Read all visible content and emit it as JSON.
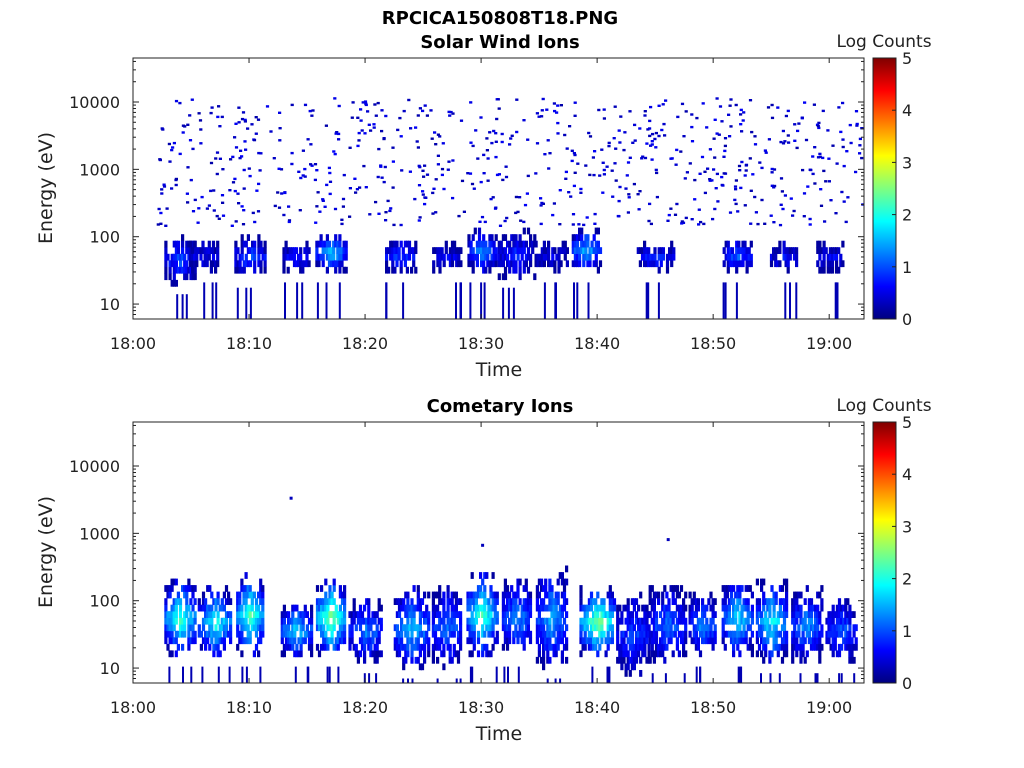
{
  "figure": {
    "title": "RPCICA150808T18.PNG"
  },
  "colors": {
    "colormap": [
      "#00007f",
      "#0000ff",
      "#007fff",
      "#00ffff",
      "#7fff7f",
      "#ffff00",
      "#ff7f00",
      "#ff0000",
      "#7f0000"
    ],
    "background": "#ffffff",
    "axes": "#222222"
  },
  "chart_data": [
    {
      "type": "heatmap",
      "title": "Solar Wind Ions",
      "xlabel": "Time",
      "ylabel": "Energy (eV)",
      "x_range": [
        "18:00",
        "19:03"
      ],
      "y_range": [
        6,
        45000
      ],
      "y_scale": "log",
      "x_ticks": [
        "18:00",
        "18:10",
        "18:20",
        "18:30",
        "18:40",
        "18:50",
        "19:00"
      ],
      "y_ticks": [
        "10",
        "100",
        "1000",
        "10000"
      ],
      "colorbar": {
        "label": "Log Counts",
        "range": [
          0,
          5
        ],
        "ticks": [
          "0",
          "1",
          "2",
          "3",
          "4",
          "5"
        ]
      },
      "blobs": [
        {
          "t": "18:04",
          "e_lo": 20,
          "e_hi": 100,
          "level": 1.0
        },
        {
          "t": "18:06",
          "e_lo": 30,
          "e_hi": 90,
          "level": 0.6
        },
        {
          "t": "18:10",
          "e_lo": 25,
          "e_hi": 100,
          "level": 1.0
        },
        {
          "t": "18:14",
          "e_lo": 30,
          "e_hi": 80,
          "level": 0.8
        },
        {
          "t": "18:17",
          "e_lo": 30,
          "e_hi": 110,
          "level": 1.6
        },
        {
          "t": "18:23",
          "e_lo": 30,
          "e_hi": 90,
          "level": 1.0
        },
        {
          "t": "18:27",
          "e_lo": 30,
          "e_hi": 80,
          "level": 0.6
        },
        {
          "t": "18:30",
          "e_lo": 30,
          "e_hi": 120,
          "level": 1.3
        },
        {
          "t": "18:33",
          "e_lo": 25,
          "e_hi": 120,
          "level": 0.8
        },
        {
          "t": "18:36",
          "e_lo": 30,
          "e_hi": 90,
          "level": 0.5
        },
        {
          "t": "18:39",
          "e_lo": 30,
          "e_hi": 130,
          "level": 1.5
        },
        {
          "t": "18:45",
          "e_lo": 30,
          "e_hi": 80,
          "level": 0.8
        },
        {
          "t": "18:52",
          "e_lo": 30,
          "e_hi": 90,
          "level": 1.1
        },
        {
          "t": "18:56",
          "e_lo": 30,
          "e_hi": 80,
          "level": 0.7
        },
        {
          "t": "19:00",
          "e_lo": 30,
          "e_hi": 80,
          "level": 0.6
        }
      ],
      "scatter_energy_range": [
        150,
        12000
      ]
    },
    {
      "type": "heatmap",
      "title": "Cometary Ions",
      "xlabel": "Time",
      "ylabel": "Energy (eV)",
      "x_range": [
        "18:00",
        "19:03"
      ],
      "y_range": [
        6,
        45000
      ],
      "y_scale": "log",
      "x_ticks": [
        "18:00",
        "18:10",
        "18:20",
        "18:30",
        "18:40",
        "18:50",
        "19:00"
      ],
      "y_ticks": [
        "10",
        "100",
        "1000",
        "10000"
      ],
      "colorbar": {
        "label": "Log Counts",
        "range": [
          0,
          5
        ],
        "ticks": [
          "0",
          "1",
          "2",
          "3",
          "4",
          "5"
        ]
      },
      "blobs": [
        {
          "t": "18:04",
          "e_lo": 15,
          "e_hi": 200,
          "level": 2.2
        },
        {
          "t": "18:07",
          "e_lo": 15,
          "e_hi": 150,
          "level": 2.0
        },
        {
          "t": "18:10",
          "e_lo": 15,
          "e_hi": 250,
          "level": 2.3
        },
        {
          "t": "18:14",
          "e_lo": 15,
          "e_hi": 90,
          "level": 1.8
        },
        {
          "t": "18:17",
          "e_lo": 15,
          "e_hi": 200,
          "level": 2.6
        },
        {
          "t": "18:20",
          "e_lo": 12,
          "e_hi": 100,
          "level": 1.3
        },
        {
          "t": "18:24",
          "e_lo": 10,
          "e_hi": 150,
          "level": 1.6
        },
        {
          "t": "18:27",
          "e_lo": 10,
          "e_hi": 160,
          "level": 1.2
        },
        {
          "t": "18:30",
          "e_lo": 15,
          "e_hi": 250,
          "level": 2.2
        },
        {
          "t": "18:33",
          "e_lo": 15,
          "e_hi": 200,
          "level": 1.4
        },
        {
          "t": "18:36",
          "e_lo": 10,
          "e_hi": 300,
          "level": 1.5
        },
        {
          "t": "18:40",
          "e_lo": 15,
          "e_hi": 150,
          "level": 2.6
        },
        {
          "t": "18:43",
          "e_lo": 8,
          "e_hi": 120,
          "level": 1.0
        },
        {
          "t": "18:46",
          "e_lo": 12,
          "e_hi": 150,
          "level": 1.2
        },
        {
          "t": "18:49",
          "e_lo": 15,
          "e_hi": 120,
          "level": 1.4
        },
        {
          "t": "18:52",
          "e_lo": 15,
          "e_hi": 200,
          "level": 1.8
        },
        {
          "t": "18:55",
          "e_lo": 12,
          "e_hi": 200,
          "level": 1.9
        },
        {
          "t": "18:58",
          "e_lo": 12,
          "e_hi": 150,
          "level": 1.4
        },
        {
          "t": "19:01",
          "e_lo": 12,
          "e_hi": 100,
          "level": 1.1
        }
      ],
      "sparse_points": [
        {
          "t": "18:13.5",
          "e": 3500
        },
        {
          "t": "18:30",
          "e": 700
        },
        {
          "t": "18:46",
          "e": 850
        }
      ]
    }
  ]
}
